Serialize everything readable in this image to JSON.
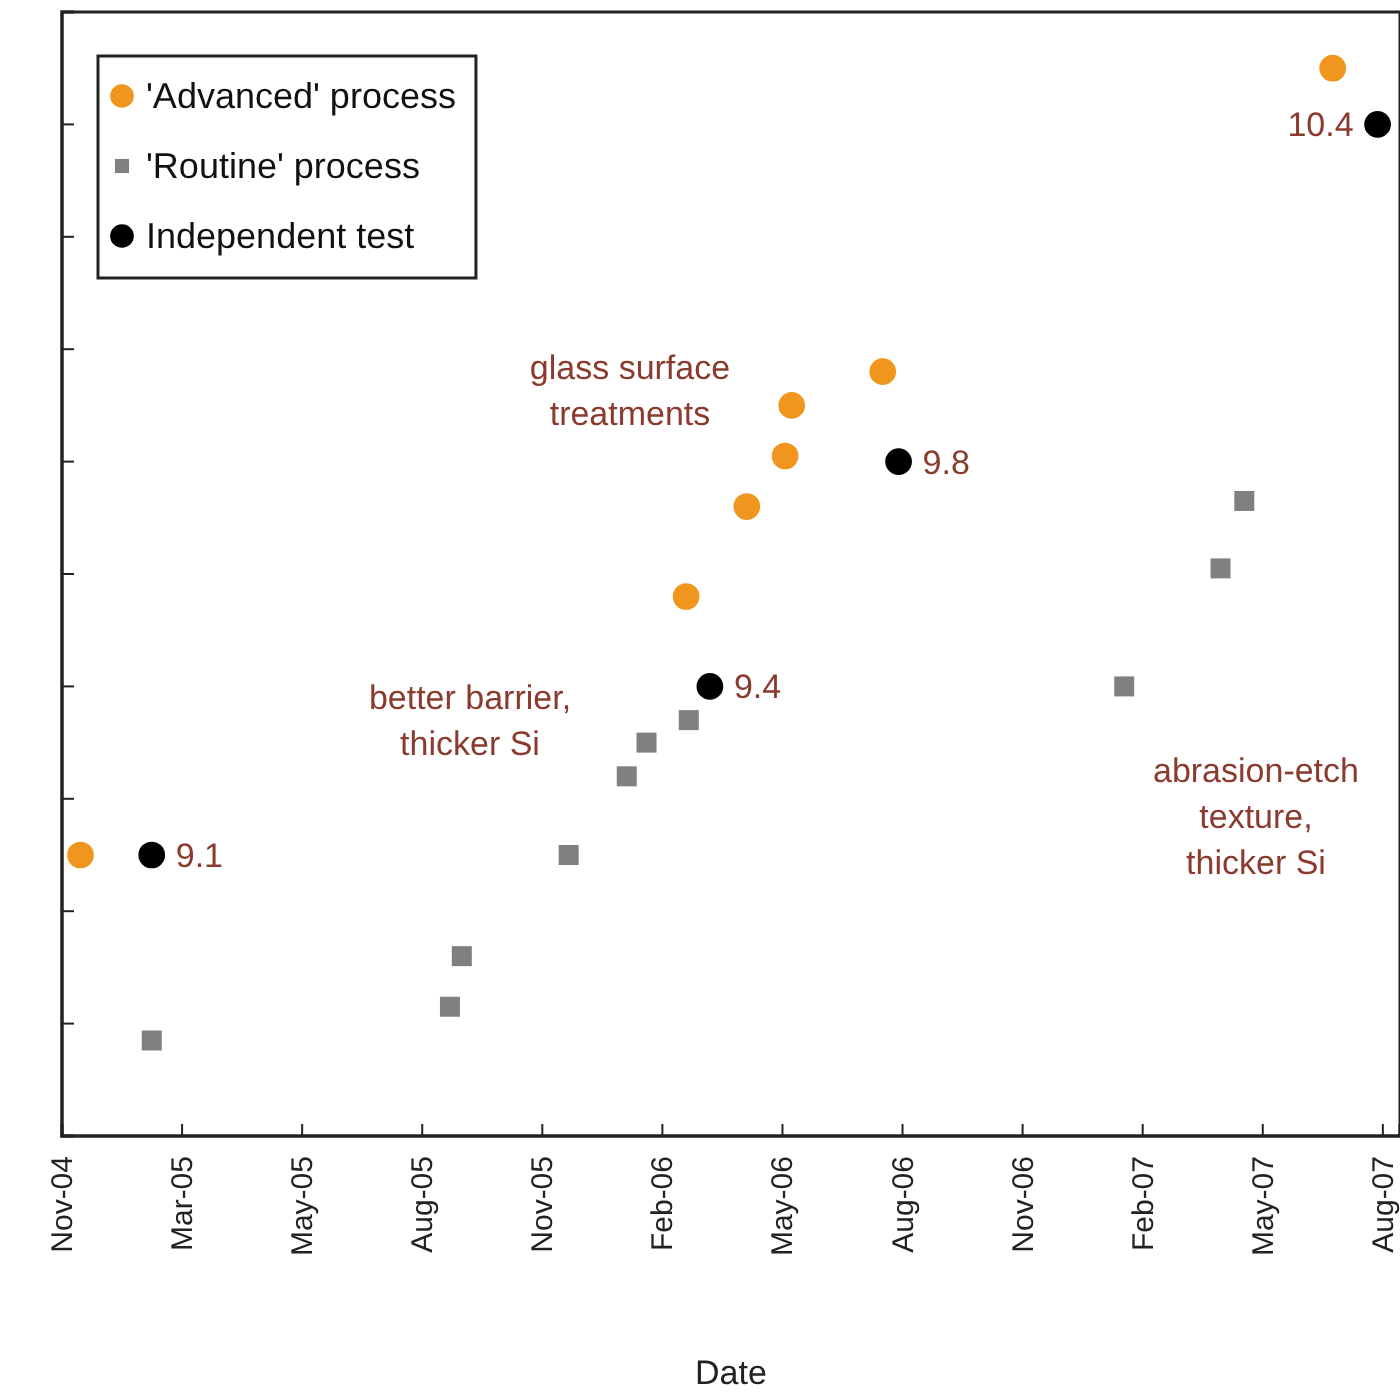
{
  "chart_data": {
    "type": "scatter",
    "xlabel": "Date",
    "xlim": [
      "2004-11-30",
      "2007-09-10"
    ],
    "xticks": [
      {
        "value": "2004-11-30",
        "label": "Nov-04"
      },
      {
        "value": "2005-03-01",
        "label": "Mar-05"
      },
      {
        "value": "2005-05-31",
        "label": "May-05"
      },
      {
        "value": "2005-08-30",
        "label": "Aug-05"
      },
      {
        "value": "2005-11-29",
        "label": "Nov-05"
      },
      {
        "value": "2006-02-28",
        "label": "Feb-06"
      },
      {
        "value": "2006-05-30",
        "label": "May-06"
      },
      {
        "value": "2006-08-29",
        "label": "Aug-06"
      },
      {
        "value": "2006-11-28",
        "label": "Nov-06"
      },
      {
        "value": "2007-02-27",
        "label": "Feb-07"
      },
      {
        "value": "2007-05-29",
        "label": "May-07"
      },
      {
        "value": "2007-08-28",
        "label": "Aug-07"
      }
    ],
    "ylim": [
      8.6,
      10.6
    ],
    "yticks": [
      {
        "value": 8.8,
        "label": null
      },
      {
        "value": 9.0,
        "label": null
      },
      {
        "value": 9.2,
        "label": null
      },
      {
        "value": 9.4,
        "label": null
      },
      {
        "value": 9.6,
        "label": null
      },
      {
        "value": 9.8,
        "label": null
      },
      {
        "value": 10.0,
        "label": null
      },
      {
        "value": 10.2,
        "label": null
      },
      {
        "value": 10.4,
        "label": null
      }
    ],
    "tick_labels": "x",
    "grid": false,
    "legend": "top left",
    "series": [
      {
        "name": "'Advanced' process",
        "color": "#f0961e",
        "marker": "circle",
        "x": [
          "2004-12-14",
          "2006-03-18",
          "2006-05-03",
          "2006-06-01",
          "2006-06-06",
          "2006-08-14",
          "2007-07-21"
        ],
        "values": [
          9.1,
          9.56,
          9.72,
          9.81,
          9.9,
          9.96,
          10.5
        ]
      },
      {
        "name": "'Routine' process",
        "color": "#808080",
        "marker": "square",
        "x": [
          "2005-02-06",
          "2005-09-20",
          "2005-09-29",
          "2005-12-19",
          "2006-02-01",
          "2006-02-16",
          "2006-03-20",
          "2007-02-13",
          "2007-04-27",
          "2007-05-15"
        ],
        "values": [
          8.77,
          8.83,
          8.92,
          9.1,
          9.24,
          9.3,
          9.34,
          9.4,
          9.61,
          9.73
        ]
      },
      {
        "name": "Independent test",
        "color": "#000000",
        "marker": "circle",
        "x": [
          "2005-02-06",
          "2006-04-05",
          "2006-08-26",
          "2007-08-24"
        ],
        "values": [
          9.1,
          9.4,
          9.8,
          10.4
        ],
        "value_labels": [
          "9.1",
          "9.4",
          "9.8",
          "10.4"
        ]
      }
    ],
    "annotations": [
      "glass surface\ntreatments",
      "better barrier,\nthicker Si",
      "abrasion-etch\ntexture,\nthicker Si"
    ]
  }
}
